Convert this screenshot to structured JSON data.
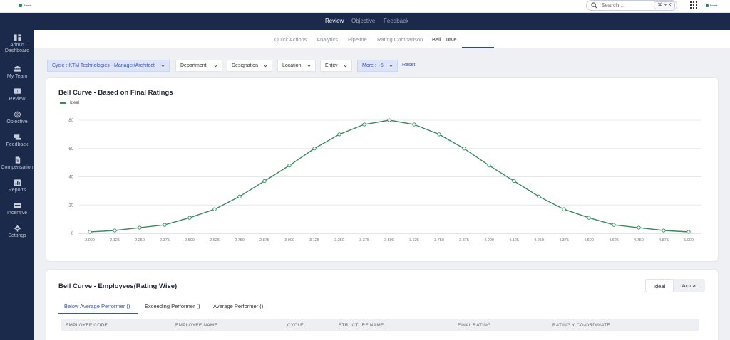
{
  "topbar": {
    "logo_text": "Bmee",
    "search_placeholder": "Search...",
    "search_shortcut": "⌘ + K",
    "brand_text": "Bmee"
  },
  "nav": {
    "items": [
      {
        "label": "Review",
        "active": true
      },
      {
        "label": "Objective",
        "active": false
      },
      {
        "label": "Feedback",
        "active": false
      }
    ]
  },
  "sidebar": {
    "items": [
      {
        "label": "Admin Dashboard",
        "icon": "dashboard-icon"
      },
      {
        "label": "My Team",
        "icon": "team-icon"
      },
      {
        "label": "Review",
        "icon": "review-icon"
      },
      {
        "label": "Objective",
        "icon": "objective-icon"
      },
      {
        "label": "Feedback",
        "icon": "feedback-icon"
      },
      {
        "label": "Compensation",
        "icon": "compensation-icon"
      },
      {
        "label": "Reports",
        "icon": "reports-icon"
      },
      {
        "label": "Incentive",
        "icon": "incentive-icon"
      },
      {
        "label": "Settings",
        "icon": "settings-icon"
      }
    ]
  },
  "subtabs": {
    "items": [
      "Quick Actions",
      "Analytics",
      "Pipeline",
      "Rating Comparison",
      "Bell Curve"
    ],
    "active": "Bell Curve"
  },
  "filters": {
    "cycle": "Cycle : KTM Technologies - Manager/Architect",
    "department": "Department",
    "designation": "Designation",
    "location": "Location",
    "entity": "Entity",
    "more": "More : +5",
    "reset": "Reset"
  },
  "bell_card": {
    "title": "Bell Curve - Based on Final Ratings",
    "legend": "Ideal"
  },
  "chart_data": {
    "type": "line",
    "title": "Bell Curve - Based on Final Ratings",
    "xlabel": "",
    "ylabel": "",
    "x": [
      "2.000",
      "2.125",
      "2.250",
      "2.375",
      "2.500",
      "2.625",
      "2.750",
      "2.875",
      "3.000",
      "3.125",
      "3.250",
      "3.375",
      "3.500",
      "3.625",
      "3.750",
      "3.875",
      "4.000",
      "4.125",
      "4.250",
      "4.375",
      "4.500",
      "4.625",
      "4.750",
      "4.875",
      "5.000"
    ],
    "series": [
      {
        "name": "Ideal",
        "color": "#3a8a5e",
        "values": [
          1,
          2,
          4,
          6,
          11,
          17,
          26,
          37,
          48,
          60,
          70,
          77,
          80,
          77,
          70,
          60,
          48,
          37,
          26,
          17,
          11,
          6,
          4,
          2,
          1
        ]
      }
    ],
    "yticks": [
      0,
      20,
      40,
      60,
      80
    ],
    "ylim": [
      0,
      80
    ],
    "grid": true,
    "legend_position": "top-left"
  },
  "employees_card": {
    "title": "Bell Curve - Employees(Rating Wise)",
    "toggle": [
      "Ideal",
      "Actual"
    ],
    "toggle_active": "Ideal",
    "tabs": [
      "Below Average Performer ()",
      "Exceeding Performer ()",
      "Average Performer ()"
    ],
    "active_tab": "Below Average Performer ()",
    "columns": [
      "EMPLOYEE CODE",
      "EMPLOYEE NAME",
      "CYCLE",
      "STRUCTURE NAME",
      "FINAL RATING",
      "RATING Y CO-ORDINATE"
    ]
  }
}
